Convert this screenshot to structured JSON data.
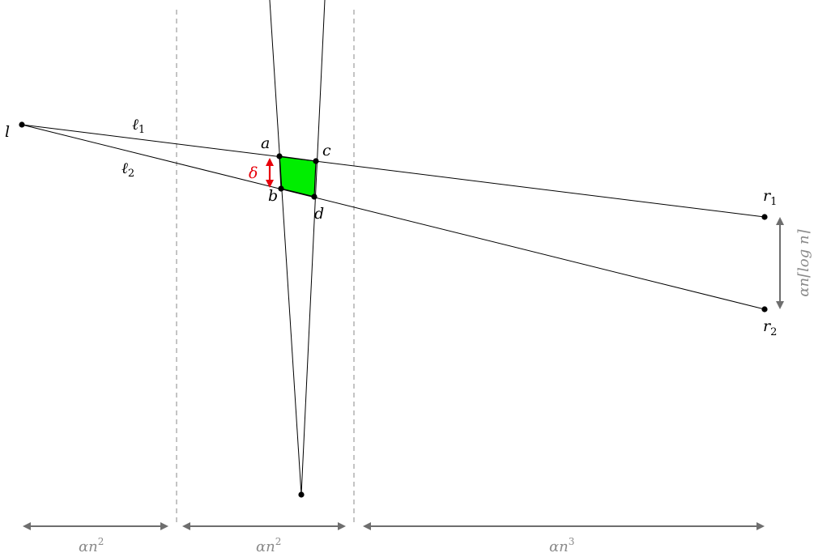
{
  "labels": {
    "l": "l",
    "a": "a",
    "b": "b",
    "c": "c",
    "d": "d",
    "r1_base": "r",
    "r1_sub": "1",
    "r2_base": "r",
    "r2_sub": "2",
    "ell1_base": "ℓ",
    "ell1_sub": "1",
    "ell2_base": "ℓ",
    "ell2_sub": "2",
    "delta": "δ"
  },
  "dimensions": {
    "left_base": "αn",
    "left_exp": "2",
    "middle_base": "αn",
    "middle_exp": "2",
    "right_base": "αn",
    "right_exp": "3",
    "vertical": "αn⌈log n⌉"
  },
  "colors": {
    "region_fill": "#00ee00",
    "delta_arrow": "#e8000b",
    "dimension_gray": "#6e6e6e",
    "dashed_gray": "#8a8a8a"
  }
}
